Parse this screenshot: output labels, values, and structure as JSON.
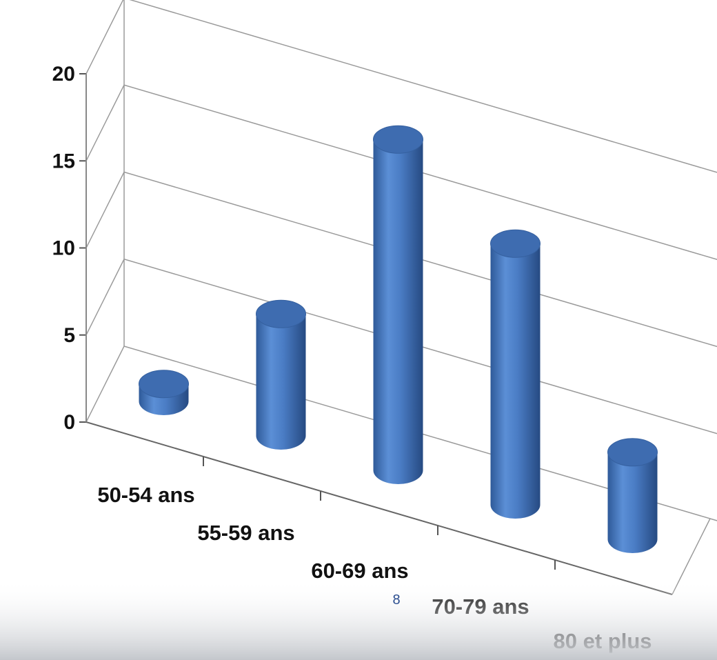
{
  "chart_data": {
    "type": "bar",
    "style": "3d-cylinder",
    "categories": [
      "50-54 ans",
      "55-59 ans",
      "60-69 ans",
      "70-79 ans",
      "80 et plus"
    ],
    "values": [
      1,
      7,
      19,
      15,
      5
    ],
    "yticks": [
      "0",
      "5",
      "10",
      "15",
      "20"
    ],
    "ylim": [
      0,
      20
    ],
    "grid": true,
    "legend": "none",
    "bar_color": "#4a7cc4"
  },
  "footer": {
    "page_number": "8"
  }
}
